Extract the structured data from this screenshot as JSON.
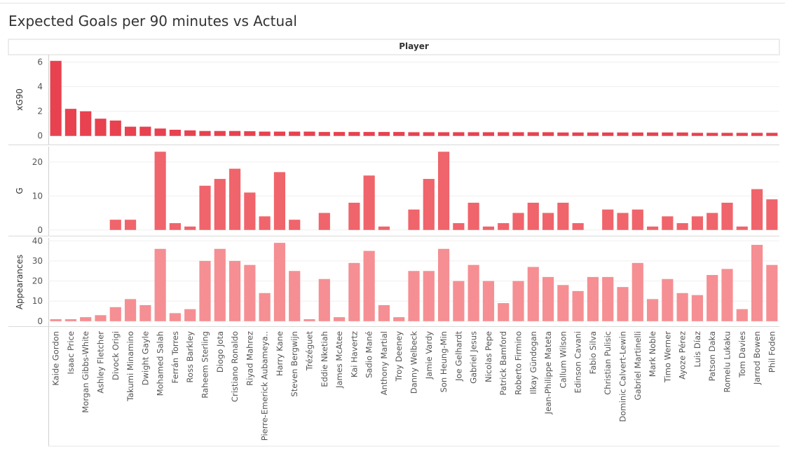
{
  "title": "Expected Goals per 90 minutes vs Actual",
  "chart_data": {
    "type": "bar",
    "column_header": "Player",
    "categories": [
      "Kaide Gordon",
      "Isaac Price",
      "Morgan Gibbs-White",
      "Ashley Fletcher",
      "Divock Origi",
      "Takumi Minamino",
      "Dwight Gayle",
      "Mohamed Salah",
      "Ferrán Torres",
      "Ross Barkley",
      "Raheem Sterling",
      "Diogo Jota",
      "Cristiano Ronaldo",
      "Riyad Mahrez",
      "Pierre-Emerick Aubameya..",
      "Harry Kane",
      "Steven Bergwijn",
      "Trézéguet",
      "Eddie Nketiah",
      "James McAtee",
      "Kai Havertz",
      "Sadio Mané",
      "Anthony Martial",
      "Troy Deeney",
      "Danny Welbeck",
      "Jamie Vardy",
      "Son Heung-Min",
      "Joe Gelhardt",
      "Gabriel Jesus",
      "Nicolas Pepe",
      "Patrick Bamford",
      "Roberto Firmino",
      "Ilkay Gündogan",
      "Jean-Philippe Mateta",
      "Callum Wilson",
      "Edinson Cavani",
      "Fabio Silva",
      "Christian Pulisic",
      "Dominic Calvert-Lewin",
      "Gabriel Martinelli",
      "Mark Noble",
      "Timo Werner",
      "Ayoze Pérez",
      "Luis Díaz",
      "Patson Daka",
      "Romelu Lukaku",
      "Tom Davies",
      "Jarrod Bowen",
      "Phil Foden"
    ],
    "series": [
      {
        "name": "xG90",
        "color": "#e8414f",
        "ticks": [
          0,
          2,
          4,
          6
        ],
        "ylim": [
          -0.7,
          6.6
        ],
        "values": [
          6.1,
          2.2,
          2.0,
          1.4,
          1.25,
          0.75,
          0.75,
          0.6,
          0.5,
          0.45,
          0.4,
          0.4,
          0.4,
          0.38,
          0.35,
          0.35,
          0.35,
          0.35,
          0.32,
          0.32,
          0.32,
          0.32,
          0.32,
          0.32,
          0.3,
          0.3,
          0.3,
          0.3,
          0.3,
          0.3,
          0.3,
          0.3,
          0.3,
          0.3,
          0.28,
          0.28,
          0.28,
          0.28,
          0.28,
          0.28,
          0.28,
          0.28,
          0.28,
          0.25,
          0.25,
          0.25,
          0.25,
          0.25,
          0.25
        ]
      },
      {
        "name": "G",
        "color": "#f0646b",
        "ticks": [
          0,
          10,
          20
        ],
        "ylim": [
          -1.7,
          24.5
        ],
        "values": [
          0,
          0,
          0,
          0,
          3,
          3,
          0,
          23,
          2,
          1,
          13,
          15,
          18,
          11,
          4,
          17,
          3,
          0,
          5,
          0,
          8,
          16,
          1,
          0,
          6,
          15,
          23,
          2,
          8,
          1,
          2,
          5,
          8,
          5,
          8,
          2,
          0,
          6,
          5,
          6,
          1,
          4,
          2,
          4,
          5,
          8,
          1,
          12,
          9
        ]
      },
      {
        "name": "Appearances",
        "color": "#f58f93",
        "ticks": [
          0,
          10,
          20,
          30,
          40
        ],
        "ylim": [
          -2.5,
          41.5
        ],
        "values": [
          1,
          1,
          2,
          3,
          7,
          11,
          8,
          36,
          4,
          6,
          30,
          36,
          30,
          28,
          14,
          39,
          25,
          1,
          21,
          2,
          29,
          35,
          8,
          2,
          25,
          25,
          36,
          20,
          28,
          20,
          9,
          20,
          27,
          22,
          18,
          15,
          22,
          22,
          17,
          29,
          11,
          21,
          14,
          13,
          23,
          26,
          6,
          38,
          28
        ]
      }
    ]
  }
}
